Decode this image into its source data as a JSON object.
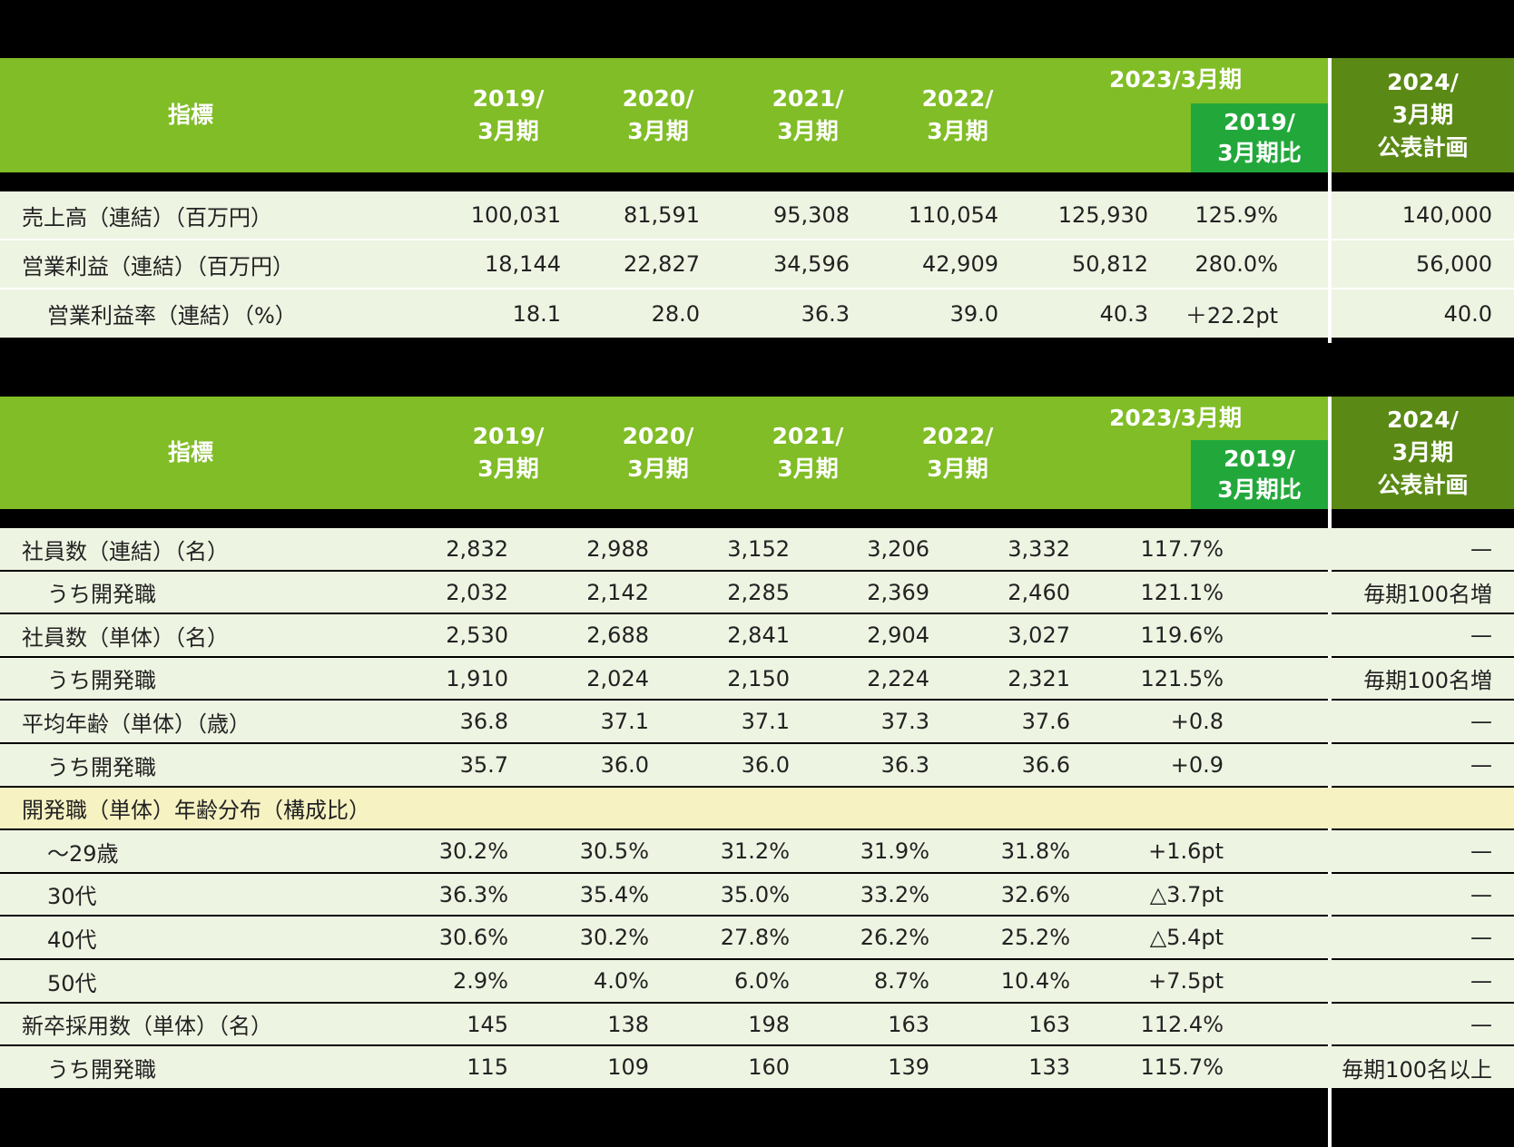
{
  "colors": {
    "header_green": "#80BD26",
    "plan_green": "#5A8A15",
    "compare_green": "#22A83A",
    "row_bg": "#EEF4E2",
    "section_row_bg": "#F6F2C2"
  },
  "table1": {
    "header": {
      "indicator": "指標",
      "y2019": "2019/\n3月期",
      "y2020": "2020/\n3月期",
      "y2021": "2021/\n3月期",
      "y2022": "2022/\n3月期",
      "y2023": "2023/3月期",
      "compare": "2019/\n3月期比",
      "plan": "2024/\n3月期\n公表計画"
    },
    "rows": [
      {
        "label": "売上高（連結）（百万円）",
        "v2019": "100,031",
        "v2020": "81,591",
        "v2021": "95,308",
        "v2022": "110,054",
        "v2023": "125,930",
        "compare": "125.9%",
        "plan": "140,000"
      },
      {
        "label": "営業利益（連結）（百万円）",
        "v2019": "18,144",
        "v2020": "22,827",
        "v2021": "34,596",
        "v2022": "42,909",
        "v2023": "50,812",
        "compare": "280.0%",
        "plan": "56,000"
      },
      {
        "label": "営業利益率（連結）（%）",
        "v2019": "18.1",
        "v2020": "28.0",
        "v2021": "36.3",
        "v2022": "39.0",
        "v2023": "40.3",
        "compare": "＋22.2pt",
        "plan": "40.0"
      }
    ]
  },
  "table2": {
    "header": {
      "indicator": "指標",
      "y2019": "2019/\n3月期",
      "y2020": "2020/\n3月期",
      "y2021": "2021/\n3月期",
      "y2022": "2022/\n3月期",
      "y2023": "2023/3月期",
      "compare": "2019/\n3月期比",
      "plan": "2024/\n3月期\n公表計画"
    },
    "rows": [
      {
        "label": "社員数（連結）（名）",
        "v2019": "2,832",
        "v2020": "2,988",
        "v2021": "3,152",
        "v2022": "3,206",
        "v2023": "3,332",
        "compare": "117.7%",
        "plan": "—"
      },
      {
        "label": "うち開発職",
        "v2019": "2,032",
        "v2020": "2,142",
        "v2021": "2,285",
        "v2022": "2,369",
        "v2023": "2,460",
        "compare": "121.1%",
        "plan": "毎期100名増"
      },
      {
        "label": "社員数（単体）（名）",
        "v2019": "2,530",
        "v2020": "2,688",
        "v2021": "2,841",
        "v2022": "2,904",
        "v2023": "3,027",
        "compare": "119.6%",
        "plan": "—"
      },
      {
        "label": "うち開発職",
        "v2019": "1,910",
        "v2020": "2,024",
        "v2021": "2,150",
        "v2022": "2,224",
        "v2023": "2,321",
        "compare": "121.5%",
        "plan": "毎期100名増"
      },
      {
        "label": "平均年齢（単体）（歳）",
        "v2019": "36.8",
        "v2020": "37.1",
        "v2021": "37.1",
        "v2022": "37.3",
        "v2023": "37.6",
        "compare": "+0.8",
        "plan": "—"
      },
      {
        "label": "うち開発職",
        "v2019": "35.7",
        "v2020": "36.0",
        "v2021": "36.0",
        "v2022": "36.3",
        "v2023": "36.6",
        "compare": "+0.9",
        "plan": "—"
      },
      {
        "label": "開発職（単体）年齢分布（構成比）",
        "v2019": "",
        "v2020": "",
        "v2021": "",
        "v2022": "",
        "v2023": "",
        "compare": "",
        "plan": ""
      },
      {
        "label": "〜29歳",
        "v2019": "30.2%",
        "v2020": "30.5%",
        "v2021": "31.2%",
        "v2022": "31.9%",
        "v2023": "31.8%",
        "compare": "+1.6pt",
        "plan": "—"
      },
      {
        "label": "30代",
        "v2019": "36.3%",
        "v2020": "35.4%",
        "v2021": "35.0%",
        "v2022": "33.2%",
        "v2023": "32.6%",
        "compare": "△3.7pt",
        "plan": "—"
      },
      {
        "label": "40代",
        "v2019": "30.6%",
        "v2020": "30.2%",
        "v2021": "27.8%",
        "v2022": "26.2%",
        "v2023": "25.2%",
        "compare": "△5.4pt",
        "plan": "—"
      },
      {
        "label": "50代",
        "v2019": "2.9%",
        "v2020": "4.0%",
        "v2021": "6.0%",
        "v2022": "8.7%",
        "v2023": "10.4%",
        "compare": "+7.5pt",
        "plan": "—"
      },
      {
        "label": "新卒採用数（単体）（名）",
        "v2019": "145",
        "v2020": "138",
        "v2021": "198",
        "v2022": "163",
        "v2023": "163",
        "compare": "112.4%",
        "plan": "—"
      },
      {
        "label": "うち開発職",
        "v2019": "115",
        "v2020": "109",
        "v2021": "160",
        "v2022": "139",
        "v2023": "133",
        "compare": "115.7%",
        "plan": "毎期100名以上"
      }
    ]
  }
}
